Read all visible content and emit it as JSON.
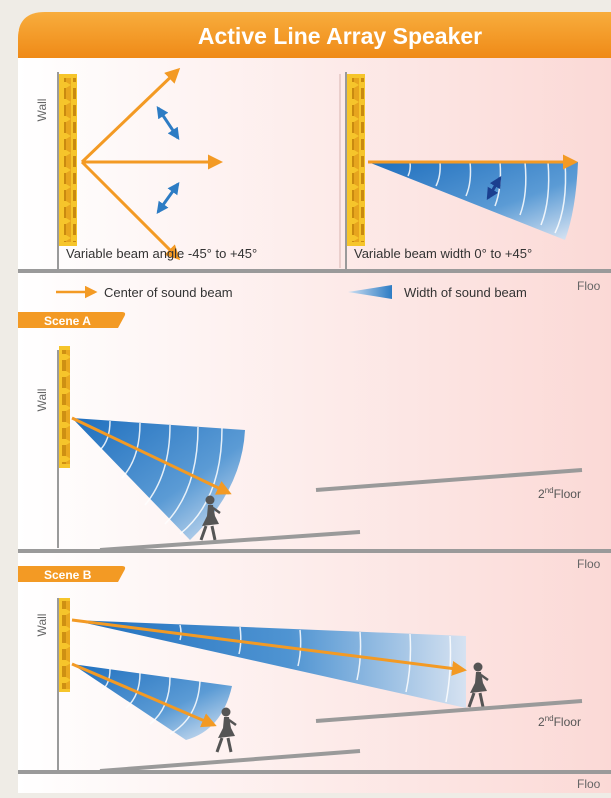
{
  "title": "Active Line Array Speaker",
  "top_panel": {
    "wall_label": "Wall",
    "left_caption": "Variable beam angle -45° to +45°",
    "right_caption": "Variable beam width 0° to +45°",
    "floor_label": "Floo"
  },
  "legend": {
    "center_label": "Center of sound beam",
    "width_label": "Width of sound beam"
  },
  "scene_a": {
    "tab_label": "Scene A",
    "wall_label": "Wall",
    "second_floor_sup": "nd",
    "second_floor_number": "2",
    "second_floor_word": "Floor",
    "floor_label": "Floo"
  },
  "scene_b": {
    "tab_label": "Scene B",
    "wall_label": "Wall",
    "second_floor_sup": "nd",
    "second_floor_number": "2",
    "second_floor_word": "Floor",
    "floor_label": "Floo"
  },
  "colors": {
    "orange": "#f39a24",
    "blue": "#2d7cc4",
    "gray": "#9a9a9a",
    "speaker_yellow": "#f6c52b"
  }
}
